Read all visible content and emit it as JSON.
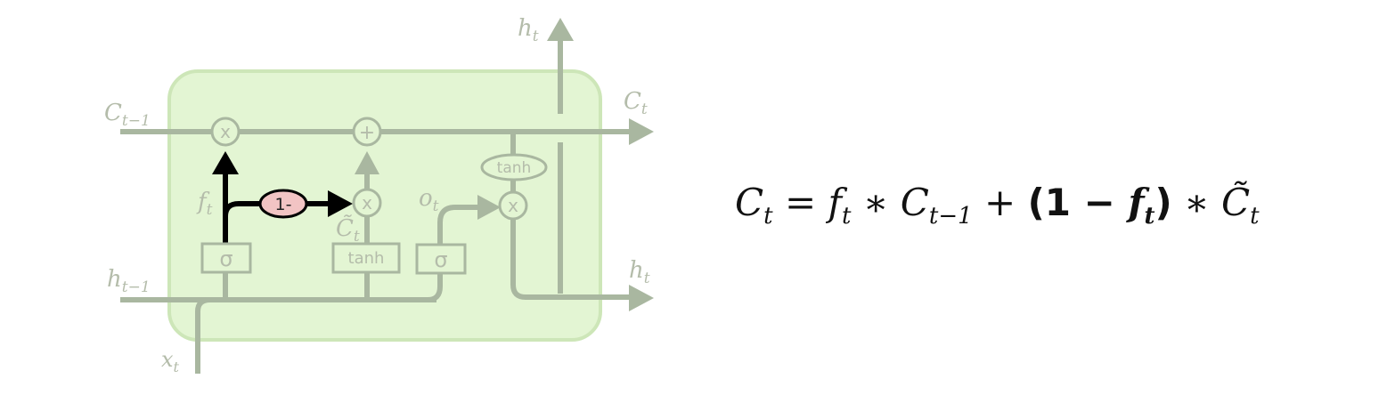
{
  "labels": {
    "c_prev": "C",
    "c_prev_sub": "t−1",
    "h_prev": "h",
    "h_prev_sub": "t−1",
    "x_in": "x",
    "x_in_sub": "t",
    "h_top": "h",
    "h_top_sub": "t",
    "c_out": "C",
    "c_out_sub": "t",
    "h_out": "h",
    "h_out_sub": "t",
    "f_gate": "f",
    "f_gate_sub": "t",
    "o_gate": "o",
    "o_gate_sub": "t",
    "c_tilde": "C̃",
    "c_tilde_sub": "t"
  },
  "gates": {
    "sigma_forget": "σ",
    "tanh_candidate": "tanh",
    "sigma_output": "σ",
    "tanh_output": "tanh"
  },
  "ops": {
    "mult_forget": "x",
    "add_cell": "+",
    "mult_input": "x",
    "mult_output": "x",
    "one_minus": "1-"
  },
  "equation": {
    "lhs": "C",
    "lhs_sub": "t",
    "eq": " = ",
    "f": "f",
    "f_sub": "t",
    "star1": " ∗ ",
    "c_prev": "C",
    "c_prev_sub": "t−1",
    "plus": " + ",
    "paren_open": "(",
    "one": "1",
    "minus": " − ",
    "f2": "f",
    "f2_sub": "t",
    "paren_close": ")",
    "star2": " ∗ ",
    "c_tilde": "C̃",
    "c_tilde_sub": "t"
  },
  "colors": {
    "cell_fill": "#e3f5d3",
    "cell_stroke": "#cde6b8",
    "faded_line": "#a9b7a0",
    "highlight": "#000000",
    "one_minus_fill": "#f2c4c4"
  }
}
